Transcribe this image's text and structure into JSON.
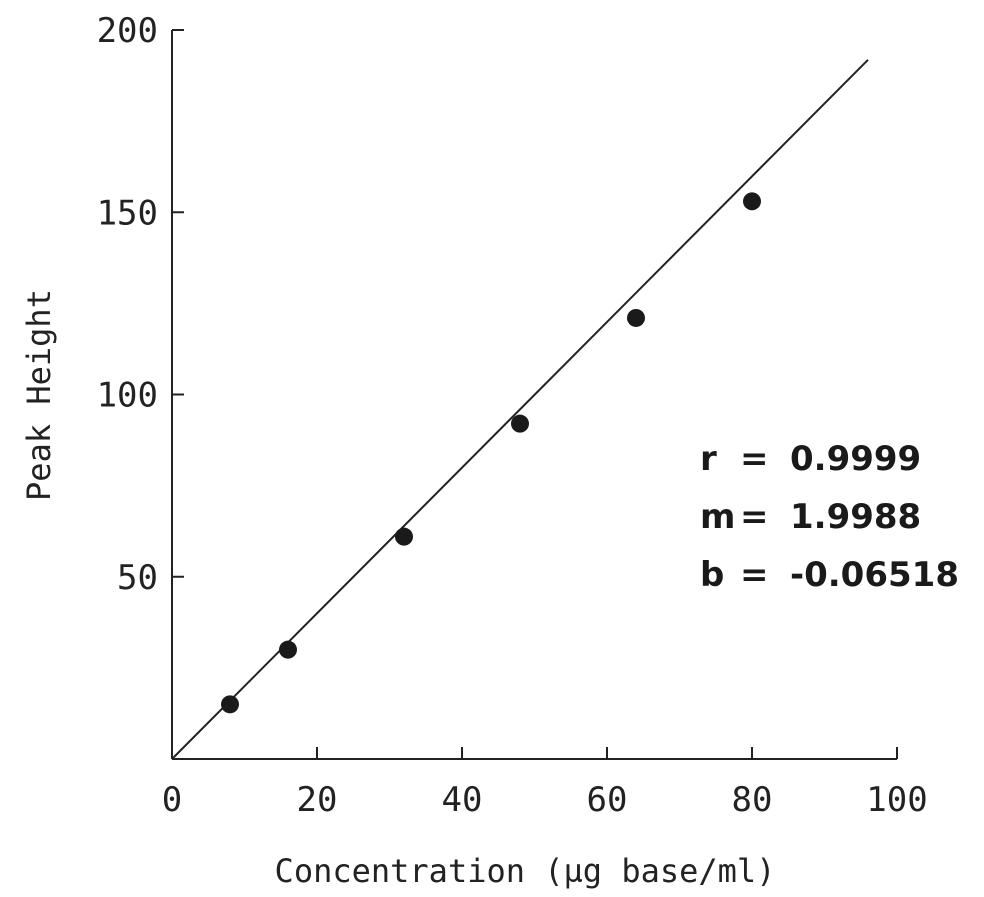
{
  "chart_data": {
    "type": "scatter",
    "xlabel": "Concentration (µg base/ml)",
    "ylabel": "Peak Height",
    "xlim": [
      0,
      100
    ],
    "ylim": [
      0,
      200
    ],
    "x_ticks": [
      0,
      20,
      40,
      60,
      80,
      100
    ],
    "y_ticks": [
      50,
      100,
      150,
      200
    ],
    "grid": false,
    "points": [
      {
        "x": 8,
        "y": 15
      },
      {
        "x": 16,
        "y": 30
      },
      {
        "x": 32,
        "y": 61
      },
      {
        "x": 48,
        "y": 92
      },
      {
        "x": 64,
        "y": 121
      },
      {
        "x": 80,
        "y": 153
      }
    ],
    "fit_line": {
      "x0": 0,
      "x1": 100,
      "slope": 1.9988,
      "intercept": -0.06518
    },
    "annotations": [
      {
        "label": "r",
        "value": "0.9999"
      },
      {
        "label": "m",
        "value": "1.9988"
      },
      {
        "label": "b",
        "value": "-0.06518"
      }
    ]
  },
  "colors": {
    "ink": "#1a1a1a",
    "background": "#ffffff"
  }
}
